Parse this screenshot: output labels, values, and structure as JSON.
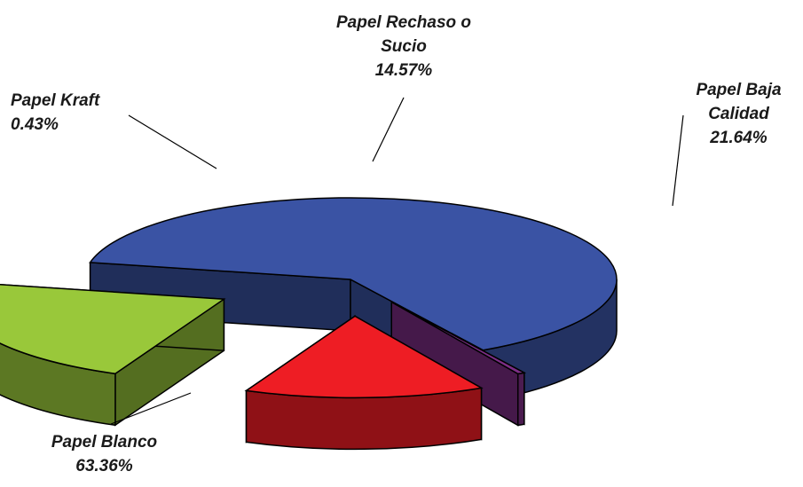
{
  "chart_data": {
    "type": "pie",
    "title": "",
    "legend": "none",
    "slices": [
      {
        "name": "Papel Blanco",
        "value": 63.36,
        "label": "63.36%",
        "color": "#3a53a4"
      },
      {
        "name": "Papel Kraft",
        "value": 0.43,
        "label": "0.43%",
        "color": "#7d2e86"
      },
      {
        "name": "Papel Rechaso o Sucio",
        "value": 14.57,
        "label": "14.57%",
        "color": "#ee1d24"
      },
      {
        "name": "Papel Baja Calidad",
        "value": 21.64,
        "label": "21.64%",
        "color": "#99c83a"
      }
    ]
  }
}
